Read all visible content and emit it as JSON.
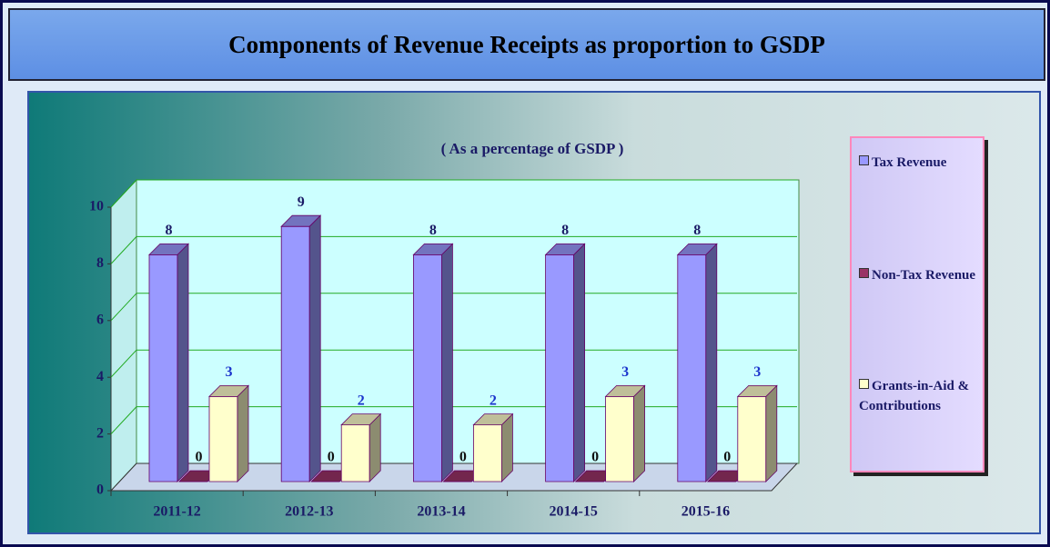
{
  "chart_data": {
    "type": "bar3d",
    "title": "Components of Revenue Receipts as proportion to GSDP",
    "subtitle": "( As a percentage of GSDP )",
    "categories": [
      "2011-12",
      "2012-13",
      "2013-14",
      "2014-15",
      "2015-16"
    ],
    "series": [
      {
        "name": "Tax Revenue",
        "color": "#9999ff",
        "values": [
          8,
          9,
          8,
          8,
          8
        ]
      },
      {
        "name": "Non-Tax Revenue",
        "color": "#993366",
        "values": [
          0,
          0,
          0,
          0,
          0
        ]
      },
      {
        "name": "Grants-in-Aid & Contributions",
        "color": "#ffffcc",
        "values": [
          3,
          2,
          2,
          3,
          3
        ]
      }
    ],
    "ylim": [
      0,
      10
    ],
    "yticks": [
      0,
      2,
      4,
      6,
      8,
      10
    ],
    "grid": true,
    "legend": "right"
  }
}
